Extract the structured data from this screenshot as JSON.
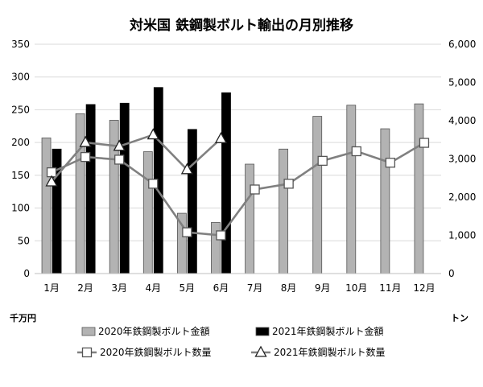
{
  "chart_data": {
    "type": "bar",
    "title": "対米国 鉄鋼製ボルト輸出の月別推移",
    "categories": [
      "1月",
      "2月",
      "3月",
      "4月",
      "5月",
      "6月",
      "7月",
      "8月",
      "9月",
      "10月",
      "11月",
      "12月"
    ],
    "left_axis": {
      "unit": "千万円",
      "min": 0,
      "max": 350,
      "ticks": [
        "0",
        "50",
        "100",
        "150",
        "200",
        "250",
        "300",
        "350"
      ]
    },
    "right_axis": {
      "unit": "トン",
      "min": 0,
      "max": 6000,
      "ticks": [
        "0",
        "1,000",
        "2,000",
        "3,000",
        "4,000",
        "5,000",
        "6,000"
      ]
    },
    "grid": true,
    "legend_position": "bottom",
    "bar_series": [
      {
        "name": "2020年鉄鋼製ボルト金額",
        "color": "#b3b3b3",
        "values": [
          207,
          244,
          234,
          186,
          92,
          78,
          167,
          190,
          240,
          257,
          221,
          259
        ]
      },
      {
        "name": "2021年鉄鋼製ボルト金額",
        "color": "#000000",
        "values": [
          190,
          258,
          260,
          284,
          220,
          276,
          null,
          null,
          null,
          null,
          null,
          null
        ]
      }
    ],
    "line_series": [
      {
        "name": "2020年鉄鋼製ボルト数量",
        "marker": "square",
        "color": "#808080",
        "values": [
          2650,
          3050,
          2980,
          2350,
          1080,
          1000,
          2200,
          2350,
          2950,
          3200,
          2900,
          3420
        ]
      },
      {
        "name": "2021年鉄鋼製ボルト数量",
        "marker": "triangle",
        "color": "#808080",
        "values": [
          2400,
          3430,
          3330,
          3630,
          2720,
          3530,
          null,
          null,
          null,
          null,
          null,
          null
        ]
      }
    ]
  }
}
